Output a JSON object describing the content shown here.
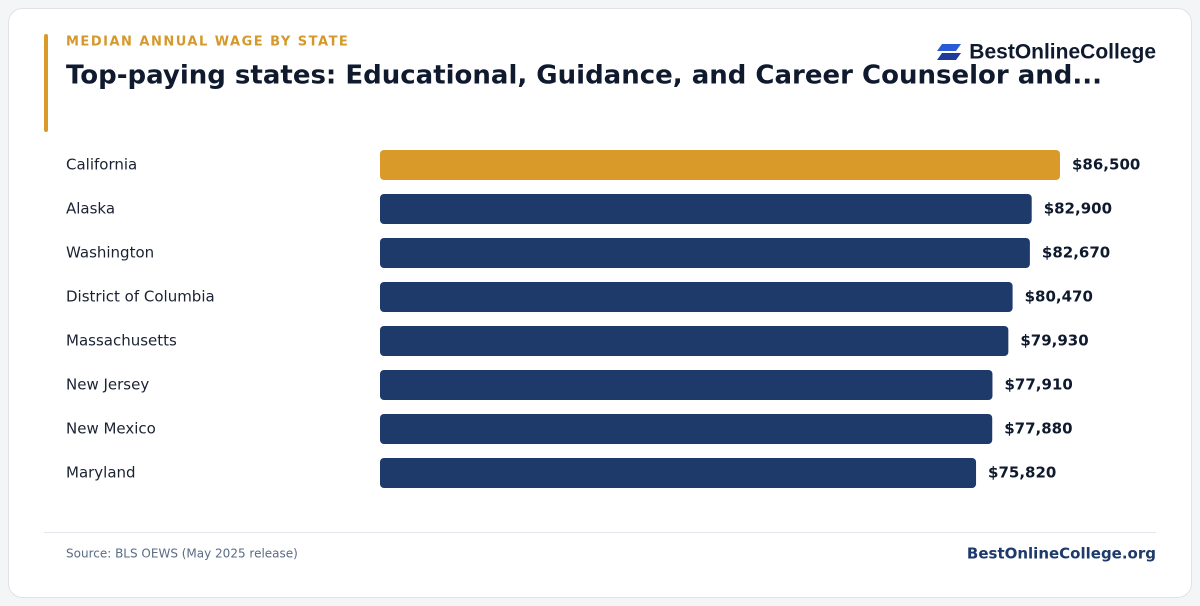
{
  "chart_data": {
    "type": "bar",
    "orientation": "horizontal",
    "eyebrow": "MEDIAN ANNUAL WAGE BY STATE",
    "title": "Top-paying states: Educational, Guidance, and Career Counselor and...",
    "brand": "BestOnlineCollege",
    "categories": [
      "California",
      "Alaska",
      "Washington",
      "District of Columbia",
      "Massachusetts",
      "New Jersey",
      "New Mexico",
      "Maryland"
    ],
    "values": [
      86500,
      82900,
      82670,
      80470,
      79930,
      77910,
      77880,
      75820
    ],
    "value_labels": [
      "$86,500",
      "$82,900",
      "$82,670",
      "$80,470",
      "$79,930",
      "$77,910",
      "$77,880",
      "$75,820"
    ],
    "colors": [
      "#da9a2a",
      "#1e3a6b",
      "#1e3a6b",
      "#1e3a6b",
      "#1e3a6b",
      "#1e3a6b",
      "#1e3a6b",
      "#1e3a6b"
    ],
    "source": "Source: BLS OEWS (May 2025 release)",
    "footer": "BestOnlineCollege.org"
  }
}
